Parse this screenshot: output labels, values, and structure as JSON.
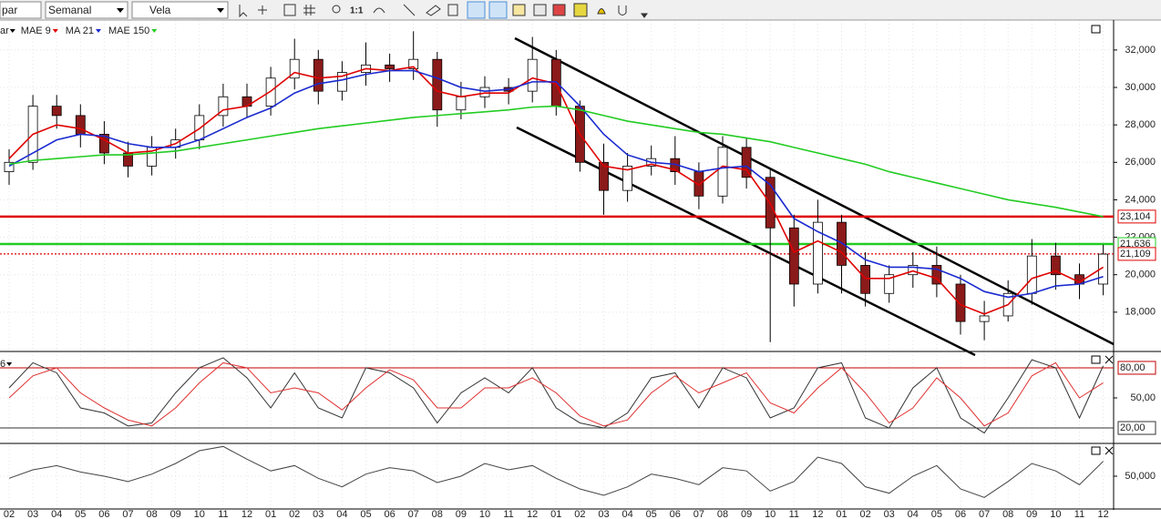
{
  "toolbar": {
    "symbol": "par",
    "period": "Semanal",
    "style": "Vela",
    "zoom": "1:1"
  },
  "chart_data": [
    {
      "type": "candlestick",
      "label": "ar",
      "categories": [
        "02",
        "03",
        "04",
        "05",
        "06",
        "07",
        "08",
        "09",
        "10",
        "11",
        "12",
        "01",
        "02",
        "03",
        "04",
        "05",
        "06",
        "07",
        "08",
        "09",
        "10",
        "11",
        "12",
        "01",
        "02",
        "03",
        "04",
        "05",
        "06",
        "07",
        "08",
        "09",
        "10",
        "11",
        "12",
        "01",
        "02",
        "03",
        "04",
        "05",
        "06",
        "07",
        "08",
        "09",
        "10",
        "11",
        "12"
      ],
      "open": [
        25500,
        26000,
        29000,
        28500,
        27500,
        26500,
        25800,
        26800,
        27200,
        28500,
        29500,
        29000,
        30500,
        31500,
        29800,
        30800,
        31200,
        31000,
        31500,
        28800,
        29500,
        30000,
        29800,
        31500,
        29000,
        26000,
        24500,
        25800,
        26200,
        25500,
        24200,
        26800,
        25200,
        22500,
        19500,
        22800,
        20500,
        19000,
        20000,
        20500,
        19500,
        17500,
        17800,
        19000,
        21000,
        20000,
        19500
      ],
      "high": [
        26700,
        29600,
        29600,
        29100,
        28200,
        27100,
        27400,
        27800,
        29100,
        30200,
        30200,
        31100,
        32600,
        32000,
        31400,
        32400,
        31800,
        33000,
        31900,
        30300,
        30600,
        30500,
        32700,
        32000,
        29300,
        27000,
        26500,
        26900,
        27400,
        26000,
        27400,
        27300,
        25700,
        23200,
        24000,
        23200,
        21200,
        20500,
        21200,
        21500,
        20000,
        18600,
        19700,
        21900,
        21700,
        20600,
        21600
      ],
      "low": [
        24800,
        25600,
        27800,
        26800,
        25900,
        25200,
        25300,
        26200,
        26700,
        27900,
        28400,
        28500,
        29900,
        29100,
        29300,
        30100,
        30300,
        30400,
        27900,
        28300,
        28900,
        29100,
        29200,
        28500,
        25500,
        23200,
        23900,
        25300,
        24800,
        23500,
        23800,
        24600,
        16400,
        18300,
        19000,
        19000,
        18300,
        18500,
        19300,
        18800,
        16800,
        16500,
        17500,
        18400,
        19200,
        18700,
        18900
      ],
      "close": [
        26000,
        29000,
        28500,
        27500,
        26500,
        25800,
        26800,
        27200,
        28500,
        29500,
        29000,
        30500,
        31500,
        29800,
        30800,
        31200,
        31000,
        31500,
        28800,
        29500,
        30000,
        29800,
        31500,
        29000,
        26000,
        24500,
        25800,
        26200,
        25500,
        24200,
        26800,
        25200,
        22500,
        19500,
        22800,
        20500,
        19000,
        20000,
        20500,
        19500,
        17500,
        17800,
        19000,
        21000,
        20000,
        19500,
        21100
      ],
      "up_color": "#ffffff",
      "down_color": "#8b1a1a",
      "ylim": [
        15950,
        33600
      ],
      "yticks": [
        {
          "value": 18000,
          "label": "18,000"
        },
        {
          "value": 20000,
          "label": "20,000"
        },
        {
          "value": 22000,
          "label": "22,000"
        },
        {
          "value": 24000,
          "label": "24,000"
        },
        {
          "value": 26000,
          "label": "26,000"
        },
        {
          "value": 28000,
          "label": "28,000"
        },
        {
          "value": 30000,
          "label": "30,000"
        },
        {
          "value": 32000,
          "label": "32,000"
        }
      ],
      "series": [
        {
          "name": "MAE 9",
          "color": "#e00000",
          "values": [
            26200,
            27500,
            28000,
            27800,
            27200,
            26500,
            26600,
            27000,
            27800,
            28800,
            29000,
            29800,
            30800,
            30500,
            30600,
            31000,
            30900,
            31100,
            29800,
            29500,
            29700,
            29700,
            30500,
            30200,
            27500,
            25800,
            25600,
            25900,
            25600,
            24800,
            25800,
            25600,
            23800,
            21200,
            21800,
            21200,
            19800,
            19800,
            20200,
            19800,
            18400,
            17900,
            18400,
            19800,
            20200,
            19600,
            20400
          ]
        },
        {
          "name": "MA 21",
          "color": "#1a2ad0",
          "values": [
            25800,
            26500,
            27200,
            27500,
            27400,
            27000,
            26800,
            26800,
            27200,
            27800,
            28400,
            28900,
            29700,
            30200,
            30400,
            30700,
            30900,
            30900,
            30500,
            30000,
            29800,
            29900,
            30300,
            30300,
            29000,
            27500,
            26400,
            26000,
            25900,
            25500,
            25700,
            25800,
            24800,
            23000,
            22300,
            21700,
            20800,
            20400,
            20400,
            20300,
            19800,
            19100,
            18800,
            19000,
            19400,
            19500,
            19900
          ]
        },
        {
          "name": "MAE 150",
          "color": "#22cc22",
          "values": [
            25900,
            26100,
            26200,
            26300,
            26400,
            26400,
            26500,
            26600,
            26800,
            27000,
            27200,
            27400,
            27600,
            27800,
            27950,
            28100,
            28250,
            28400,
            28500,
            28600,
            28700,
            28800,
            28950,
            29000,
            28800,
            28500,
            28200,
            28000,
            27800,
            27600,
            27500,
            27300,
            27100,
            26800,
            26500,
            26200,
            25900,
            25500,
            25200,
            24900,
            24600,
            24300,
            24000,
            23800,
            23600,
            23350,
            23100
          ]
        }
      ],
      "levels": [
        {
          "value": 23104,
          "label": "23,104",
          "color": "#e00000",
          "style": "solid"
        },
        {
          "value": 21636,
          "label": "21,636",
          "color": "#22cc22",
          "style": "solid"
        },
        {
          "value": 21109,
          "label": "21,109",
          "color": "#e00000",
          "style": "dotted"
        }
      ],
      "grid": true
    },
    {
      "type": "line",
      "label": "6",
      "ylim": [
        6.4,
        94.5
      ],
      "yticks": [
        {
          "value": 50,
          "label": "50,00"
        }
      ],
      "levels": [
        {
          "value": 80,
          "label": "80,00",
          "color": "#c00000",
          "style": "solid"
        },
        {
          "value": 20,
          "label": "20,00",
          "color": "#333333",
          "style": "solid"
        }
      ],
      "series": [
        {
          "color": "#333333",
          "values": [
            60,
            85,
            75,
            40,
            35,
            22,
            25,
            55,
            80,
            90,
            70,
            40,
            75,
            40,
            30,
            80,
            75,
            60,
            25,
            55,
            70,
            55,
            80,
            40,
            25,
            20,
            35,
            70,
            75,
            40,
            80,
            70,
            30,
            40,
            80,
            85,
            30,
            20,
            60,
            80,
            30,
            15,
            50,
            88,
            80,
            30,
            82
          ]
        },
        {
          "color": "#e03030",
          "values": [
            50,
            72,
            80,
            55,
            40,
            28,
            22,
            40,
            65,
            85,
            80,
            55,
            60,
            55,
            38,
            60,
            78,
            68,
            40,
            40,
            60,
            60,
            70,
            55,
            32,
            22,
            28,
            55,
            72,
            55,
            65,
            75,
            45,
            35,
            60,
            80,
            55,
            25,
            40,
            70,
            50,
            22,
            35,
            72,
            85,
            50,
            65
          ]
        }
      ]
    },
    {
      "type": "line",
      "ylim": [
        20000,
        80000
      ],
      "yticks": [
        {
          "value": 50000,
          "label": "50,000"
        }
      ],
      "series": [
        {
          "color": "#444444",
          "values": [
            48000,
            56000,
            60000,
            54000,
            50000,
            45000,
            52000,
            62000,
            74000,
            78000,
            66000,
            55000,
            60000,
            48000,
            40000,
            52000,
            58000,
            55000,
            44000,
            50000,
            62000,
            56000,
            60000,
            48000,
            38000,
            32000,
            40000,
            52000,
            48000,
            42000,
            58000,
            55000,
            36000,
            45000,
            68000,
            62000,
            40000,
            34000,
            50000,
            60000,
            38000,
            30000,
            45000,
            62000,
            55000,
            42000,
            64000
          ]
        }
      ]
    }
  ]
}
